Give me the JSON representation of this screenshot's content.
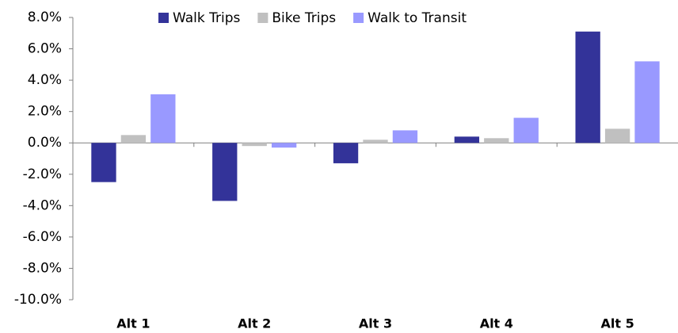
{
  "chart_data": {
    "type": "bar",
    "categories": [
      "Alt 1",
      "Alt 2",
      "Alt 3",
      "Alt 4",
      "Alt 5"
    ],
    "series": [
      {
        "name": "Walk Trips",
        "color": "#333399",
        "values": [
          -2.5,
          -3.7,
          -1.3,
          0.4,
          7.1
        ]
      },
      {
        "name": "Bike Trips",
        "color": "#c0c0c0",
        "values": [
          0.5,
          -0.2,
          0.2,
          0.3,
          0.9
        ]
      },
      {
        "name": "Walk to Transit",
        "color": "#9999ff",
        "values": [
          3.1,
          -0.3,
          0.8,
          1.6,
          5.2
        ]
      }
    ],
    "ylim": [
      -10,
      8
    ],
    "yticks": [
      {
        "value": -10,
        "label": "-10.0%"
      },
      {
        "value": -8,
        "label": "-8.0%"
      },
      {
        "value": -6,
        "label": "-6.0%"
      },
      {
        "value": -4,
        "label": "-4.0%"
      },
      {
        "value": -2,
        "label": "-2.0%"
      },
      {
        "value": 0,
        "label": "0.0%"
      },
      {
        "value": 2,
        "label": "2.0%"
      },
      {
        "value": 4,
        "label": "4.0%"
      },
      {
        "value": 6,
        "label": "6.0%"
      },
      {
        "value": 8,
        "label": "8.0%"
      }
    ],
    "grid": false,
    "legend": "top"
  }
}
